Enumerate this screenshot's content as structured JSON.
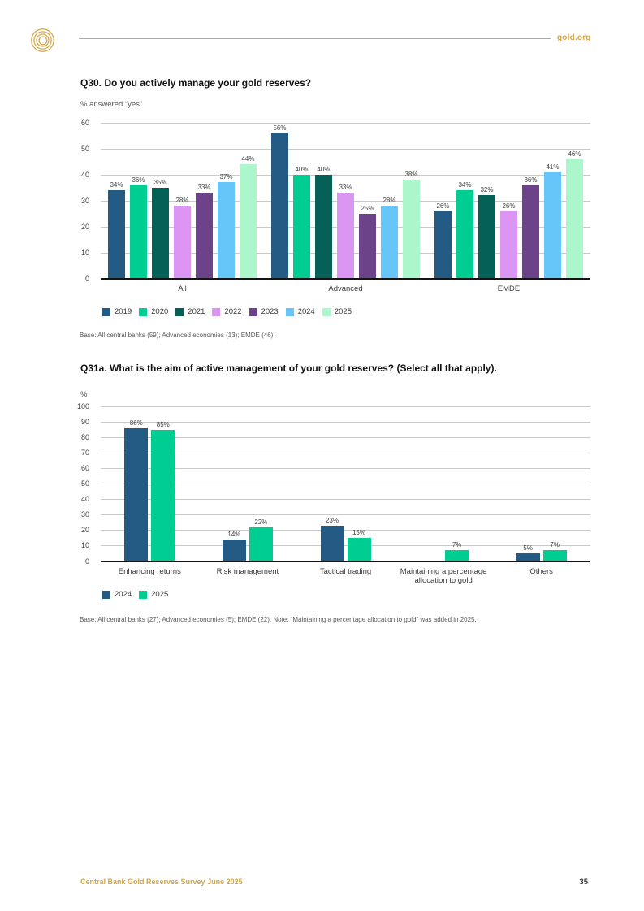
{
  "header": {
    "site_link": "gold.org"
  },
  "colors": {
    "gold": "#D2A64B",
    "grid": "#C9C9C9",
    "axis": "#141414"
  },
  "chart_data": [
    {
      "type": "bar",
      "title": "Q30. Do you actively manage your gold reserves?",
      "ylabel": "% answered “yes”",
      "xlabel": "",
      "categories": [
        "All",
        "Advanced",
        "EMDE"
      ],
      "series": [
        {
          "name": "2019",
          "color": "#235B84",
          "values": [
            34,
            56,
            26
          ]
        },
        {
          "name": "2020",
          "color": "#00CD92",
          "values": [
            36,
            40,
            34
          ]
        },
        {
          "name": "2021",
          "color": "#056158",
          "values": [
            35,
            40,
            32
          ]
        },
        {
          "name": "2022",
          "color": "#DA96F2",
          "values": [
            28,
            33,
            26
          ]
        },
        {
          "name": "2023",
          "color": "#6C4288",
          "values": [
            33,
            25,
            36
          ]
        },
        {
          "name": "2024",
          "color": "#66C6F9",
          "values": [
            37,
            28,
            41
          ]
        },
        {
          "name": "2025",
          "color": "#ABF7CB",
          "values": [
            44,
            38,
            46
          ]
        }
      ],
      "ylim": [
        0,
        60
      ],
      "ytick_step": 10,
      "value_suffix": "%",
      "grid": true,
      "legend_position": "bottom-left"
    },
    {
      "type": "bar",
      "title": "Q31a. What is the aim of active management of your gold reserves? (Select all that apply).",
      "ylabel": "%",
      "xlabel": "",
      "categories": [
        "Enhancing returns",
        "Risk management",
        "Tactical trading",
        "Maintaining a percentage allocation to gold",
        "Others"
      ],
      "series": [
        {
          "name": "2024",
          "color": "#235B84",
          "values": [
            86,
            14,
            23,
            null,
            5
          ]
        },
        {
          "name": "2025",
          "color": "#00CD92",
          "values": [
            85,
            22,
            15,
            7,
            7
          ]
        }
      ],
      "ylim": [
        0,
        100
      ],
      "ytick_step": 10,
      "value_suffix": "%",
      "grid": true,
      "legend_position": "bottom-left"
    }
  ],
  "notes": {
    "q30": "Base: All central banks (59); Advanced economies (13); EMDE (46).",
    "q31a": "Base: All central banks (27); Advanced economies (5); EMDE (22). Note: “Maintaining a percentage allocation to gold” was added in 2025."
  },
  "footer": {
    "left": "Central Bank Gold Reserves Survey June 2025",
    "page_number": "35"
  }
}
